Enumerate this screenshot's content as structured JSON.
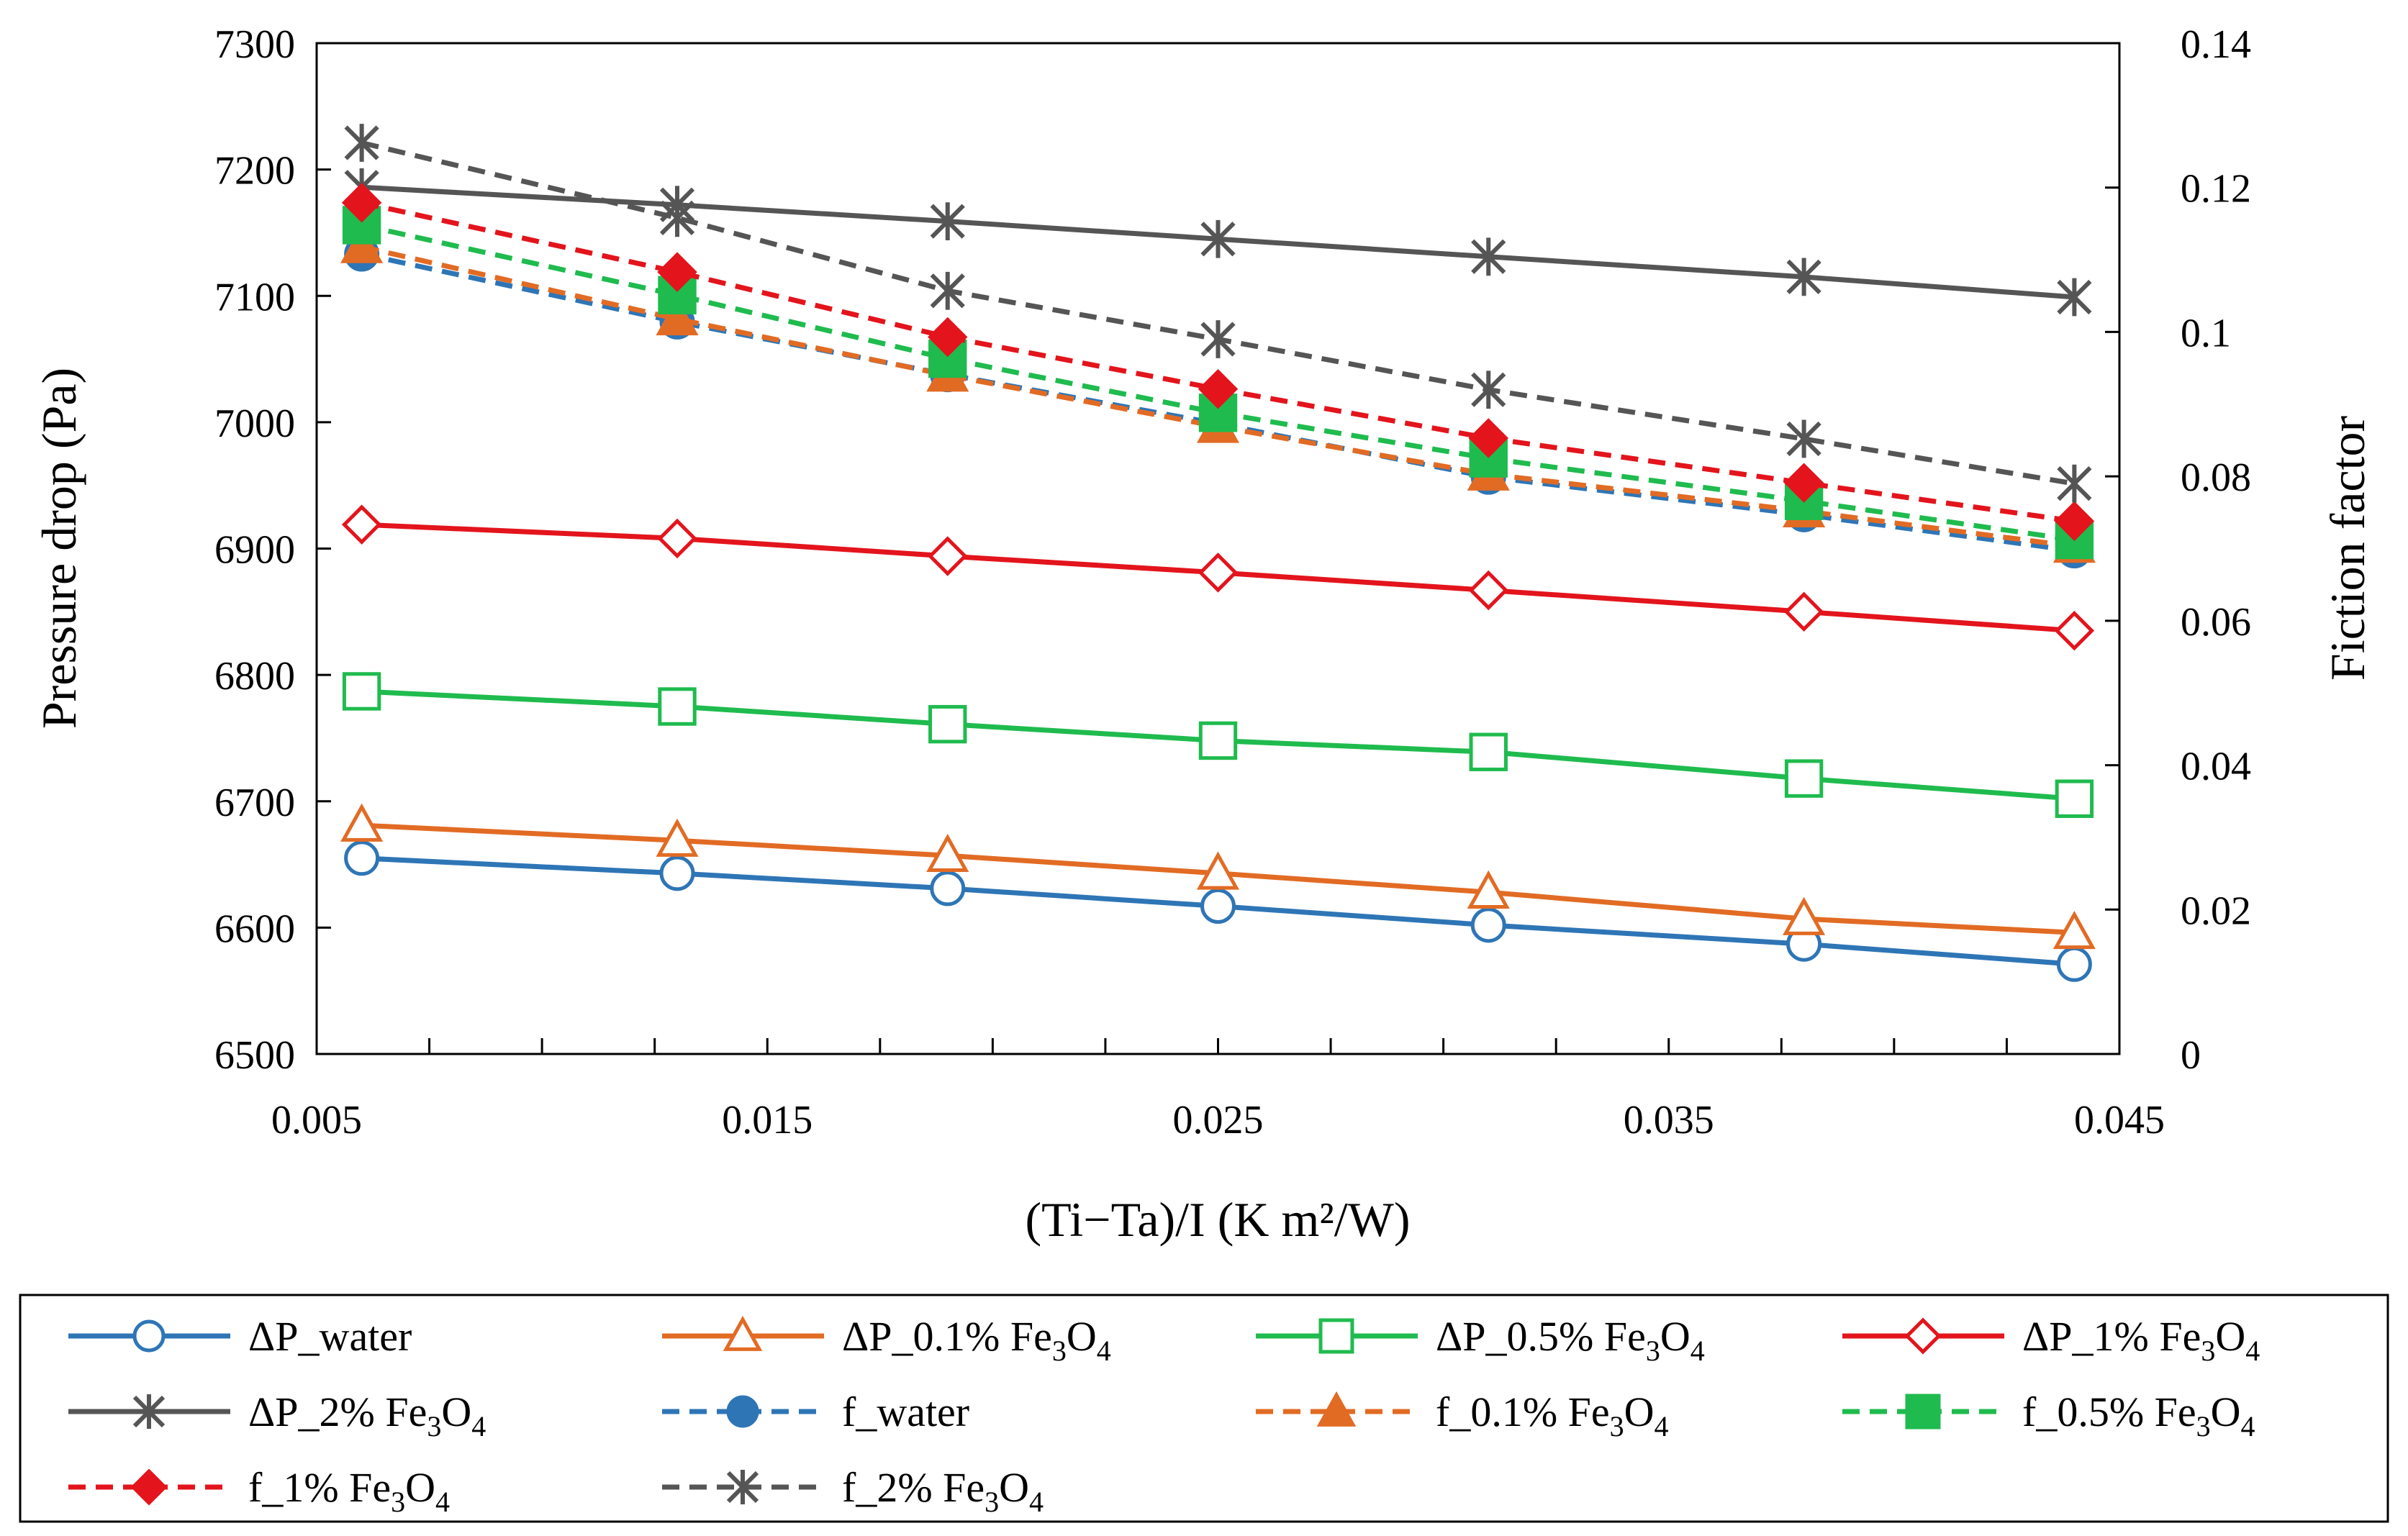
{
  "chart_data": {
    "type": "line",
    "title": "",
    "xlabel": "(Ti−Ta)/I (K m²/W)",
    "ylabel": "Pressure drop (Pa)",
    "y2label": "Fiction factor",
    "xlim": [
      0.005,
      0.045
    ],
    "ylim": [
      6500,
      7300
    ],
    "y2lim": [
      0,
      0.14
    ],
    "grid": false,
    "legend_position": "bottom",
    "x_ticks": [
      "0.005",
      "0.015",
      "0.025",
      "0.035",
      "0.045"
    ],
    "x_tick_values": [
      0.005,
      0.015,
      0.025,
      0.035,
      0.045
    ],
    "x_minor_ticks": [
      0.0075,
      0.01,
      0.0125,
      0.0175,
      0.02,
      0.0225,
      0.0275,
      0.03,
      0.0325,
      0.0375,
      0.04,
      0.0425
    ],
    "y_ticks": [
      "6500",
      "6600",
      "6700",
      "6800",
      "6900",
      "7000",
      "7100",
      "7200",
      "7300"
    ],
    "y_tick_values": [
      6500,
      6600,
      6700,
      6800,
      6900,
      7000,
      7100,
      7200,
      7300
    ],
    "y2_ticks": [
      "0",
      "0.02",
      "0.04",
      "0.06",
      "0.08",
      "0.1",
      "0.12",
      "0.14"
    ],
    "y2_tick_values": [
      0,
      0.02,
      0.04,
      0.06,
      0.08,
      0.1,
      0.12,
      0.14
    ],
    "x": [
      0.006,
      0.013,
      0.019,
      0.025,
      0.031,
      0.038,
      0.044
    ],
    "series": [
      {
        "name": "ΔP_water",
        "base": "ΔP_water",
        "sub": "",
        "axis": "left",
        "color": "#2e75b6",
        "dash": false,
        "marker": "circle-open",
        "values": [
          6655,
          6643,
          6631,
          6617,
          6602,
          6587,
          6571
        ]
      },
      {
        "name": "ΔP_0.1% Fe3O4",
        "base": "ΔP_0.1% Fe",
        "sub": "3",
        "axis": "left",
        "color": "#e26b24",
        "dash": false,
        "marker": "triangle-open",
        "values": [
          6681,
          6669,
          6657,
          6643,
          6628,
          6607,
          6596
        ]
      },
      {
        "name": "ΔP_0.5% Fe3O4",
        "base": "ΔP_0.5% Fe",
        "sub": "3",
        "axis": "left",
        "color": "#1fbb4e",
        "dash": false,
        "marker": "square-open",
        "values": [
          6787,
          6775,
          6761,
          6748,
          6739,
          6718,
          6702
        ]
      },
      {
        "name": "ΔP_1% Fe3O4",
        "base": "ΔP_1% Fe",
        "sub": "3",
        "axis": "left",
        "color": "#e3141c",
        "dash": false,
        "marker": "diamond-open",
        "values": [
          6919,
          6908,
          6894,
          6881,
          6867,
          6850,
          6835
        ]
      },
      {
        "name": "ΔP_2% Fe3O4",
        "base": "ΔP_2% Fe",
        "sub": "3",
        "axis": "left",
        "color": "#555555",
        "dash": false,
        "marker": "asterisk",
        "values": [
          7186,
          7172,
          7159,
          7145,
          7131,
          7115,
          7099
        ]
      },
      {
        "name": "f_water",
        "base": "f_water",
        "sub": "",
        "axis": "right",
        "color": "#2e75b6",
        "dash": true,
        "marker": "circle-filled",
        "values": [
          0.1108,
          0.1014,
          0.0941,
          0.0873,
          0.0799,
          0.0747,
          0.0697
        ]
      },
      {
        "name": "f_0.1% Fe3O4",
        "base": "f_0.1% Fe",
        "sub": "3",
        "axis": "right",
        "color": "#e26b24",
        "dash": true,
        "marker": "triangle-filled",
        "values": [
          0.1118,
          0.1018,
          0.094,
          0.0869,
          0.0803,
          0.0752,
          0.0703
        ]
      },
      {
        "name": "f_0.5% Fe3O4",
        "base": "f_0.5% Fe",
        "sub": "3",
        "axis": "right",
        "color": "#1fbb4e",
        "dash": true,
        "marker": "square-filled",
        "values": [
          0.1148,
          0.1051,
          0.0963,
          0.0888,
          0.0825,
          0.0766,
          0.0712
        ]
      },
      {
        "name": "f_1% Fe3O4",
        "base": "f_1% Fe",
        "sub": "3",
        "axis": "right",
        "color": "#e3141c",
        "dash": true,
        "marker": "diamond-filled",
        "values": [
          0.1179,
          0.1083,
          0.0993,
          0.0921,
          0.0853,
          0.0791,
          0.0738
        ]
      },
      {
        "name": "f_2% Fe3O4",
        "base": "f_2% Fe",
        "sub": "3",
        "axis": "right",
        "color": "#555555",
        "dash": true,
        "marker": "asterisk",
        "values": [
          0.1262,
          0.1158,
          0.1057,
          0.099,
          0.092,
          0.0852,
          0.079
        ]
      }
    ]
  }
}
